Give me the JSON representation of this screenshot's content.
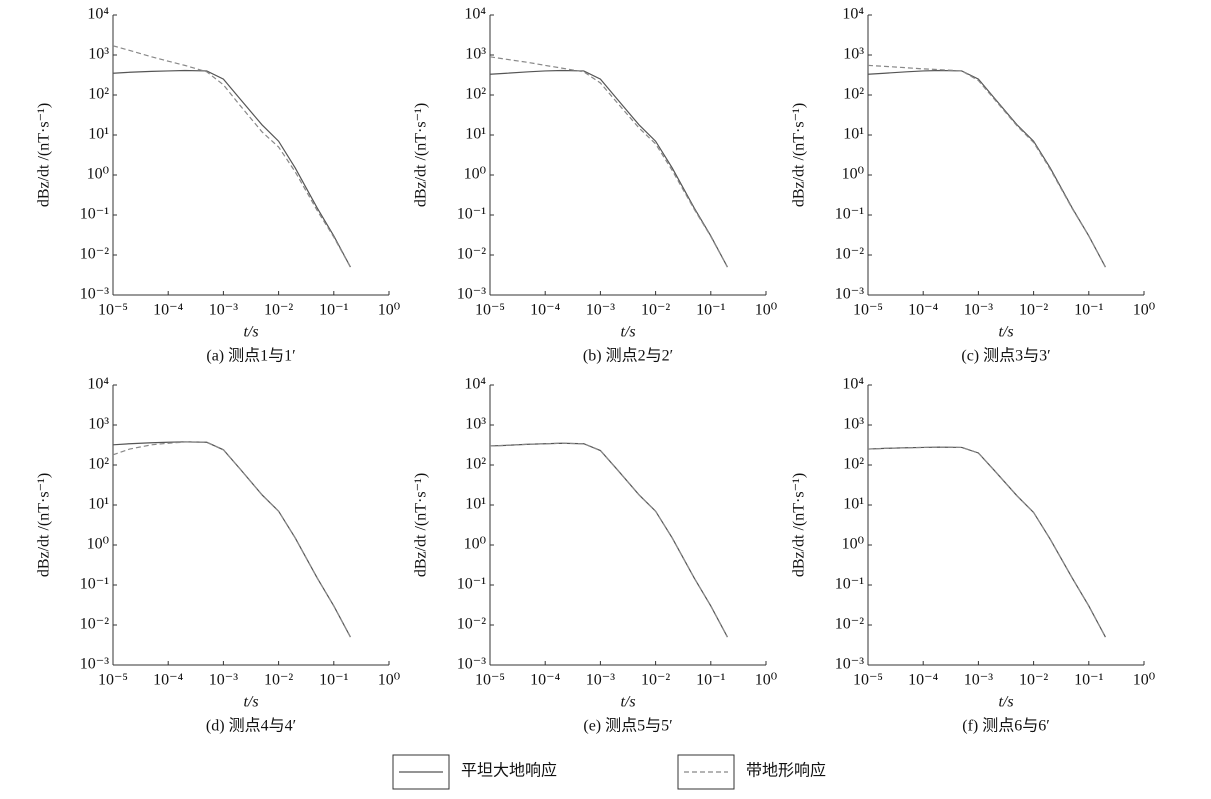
{
  "chart_data": [
    {
      "type": "line",
      "caption": "(a) 测点1与1′",
      "x_label": "t/s",
      "y_label": "dBz/dt /(nT·s⁻¹)",
      "xscale": "log",
      "yscale": "log",
      "x": [
        1e-05,
        2e-05,
        5e-05,
        0.0001,
        0.0002,
        0.0005,
        0.001,
        0.002,
        0.005,
        0.01,
        0.02,
        0.05,
        0.1,
        0.2
      ],
      "series": [
        {
          "style": "solid",
          "color": "#555555",
          "values": [
            350,
            370,
            390,
            400,
            410,
            400,
            250,
            80,
            18,
            7,
            1.5,
            0.15,
            0.03,
            0.005
          ]
        },
        {
          "style": "dashed",
          "color": "#888888",
          "values": [
            1700,
            1300,
            900,
            700,
            550,
            380,
            180,
            55,
            12,
            5,
            1.2,
            0.13,
            0.028,
            0.005
          ]
        }
      ],
      "xlim": [
        1e-05,
        1
      ],
      "ylim": [
        0.001,
        10000
      ],
      "xticks": [
        {
          "value": 1e-05,
          "label": "10⁻⁵"
        },
        {
          "value": 0.0001,
          "label": "10⁻⁴"
        },
        {
          "value": 0.001,
          "label": "10⁻³"
        },
        {
          "value": 0.01,
          "label": "10⁻²"
        },
        {
          "value": 0.1,
          "label": "10⁻¹"
        },
        {
          "value": 1,
          "label": "10⁰"
        }
      ],
      "yticks": [
        {
          "value": 0.001,
          "label": "10⁻³"
        },
        {
          "value": 0.01,
          "label": "10⁻²"
        },
        {
          "value": 0.1,
          "label": "10⁻¹"
        },
        {
          "value": 1,
          "label": "10⁰"
        },
        {
          "value": 10,
          "label": "10¹"
        },
        {
          "value": 100,
          "label": "10²"
        },
        {
          "value": 1000,
          "label": "10³"
        },
        {
          "value": 10000,
          "label": "10⁴"
        }
      ]
    },
    {
      "type": "line",
      "caption": "(b) 测点2与2′",
      "x_label": "t/s",
      "y_label": "dBz/dt /(nT·s⁻¹)",
      "xscale": "log",
      "yscale": "log",
      "x": [
        1e-05,
        2e-05,
        5e-05,
        0.0001,
        0.0002,
        0.0005,
        0.001,
        0.002,
        0.005,
        0.01,
        0.02,
        0.05,
        0.1,
        0.2
      ],
      "series": [
        {
          "style": "solid",
          "color": "#555555",
          "values": [
            330,
            350,
            380,
            400,
            410,
            400,
            250,
            80,
            18,
            7,
            1.5,
            0.15,
            0.03,
            0.005
          ]
        },
        {
          "style": "dashed",
          "color": "#888888",
          "values": [
            900,
            780,
            650,
            550,
            470,
            380,
            200,
            65,
            15,
            6,
            1.3,
            0.14,
            0.029,
            0.005
          ]
        }
      ],
      "xlim": [
        1e-05,
        1
      ],
      "ylim": [
        0.001,
        10000
      ],
      "xticks": [
        {
          "value": 1e-05,
          "label": "10⁻⁵"
        },
        {
          "value": 0.0001,
          "label": "10⁻⁴"
        },
        {
          "value": 0.001,
          "label": "10⁻³"
        },
        {
          "value": 0.01,
          "label": "10⁻²"
        },
        {
          "value": 0.1,
          "label": "10⁻¹"
        },
        {
          "value": 1,
          "label": "10⁰"
        }
      ],
      "yticks": [
        {
          "value": 0.001,
          "label": "10⁻³"
        },
        {
          "value": 0.01,
          "label": "10⁻²"
        },
        {
          "value": 0.1,
          "label": "10⁻¹"
        },
        {
          "value": 1,
          "label": "10⁰"
        },
        {
          "value": 10,
          "label": "10¹"
        },
        {
          "value": 100,
          "label": "10²"
        },
        {
          "value": 1000,
          "label": "10³"
        },
        {
          "value": 10000,
          "label": "10⁴"
        }
      ]
    },
    {
      "type": "line",
      "caption": "(c) 测点3与3′",
      "x_label": "t/s",
      "y_label": "dBz/dt /(nT·s⁻¹)",
      "xscale": "log",
      "yscale": "log",
      "x": [
        1e-05,
        2e-05,
        5e-05,
        0.0001,
        0.0002,
        0.0005,
        0.001,
        0.002,
        0.005,
        0.01,
        0.02,
        0.05,
        0.1,
        0.2
      ],
      "series": [
        {
          "style": "solid",
          "color": "#555555",
          "values": [
            330,
            350,
            380,
            400,
            410,
            400,
            250,
            80,
            18,
            7,
            1.5,
            0.15,
            0.03,
            0.005
          ]
        },
        {
          "style": "dashed",
          "color": "#888888",
          "values": [
            550,
            520,
            480,
            450,
            430,
            400,
            230,
            75,
            17,
            6.5,
            1.4,
            0.145,
            0.03,
            0.005
          ]
        }
      ],
      "xlim": [
        1e-05,
        1
      ],
      "ylim": [
        0.001,
        10000
      ],
      "xticks": [
        {
          "value": 1e-05,
          "label": "10⁻⁵"
        },
        {
          "value": 0.0001,
          "label": "10⁻⁴"
        },
        {
          "value": 0.001,
          "label": "10⁻³"
        },
        {
          "value": 0.01,
          "label": "10⁻²"
        },
        {
          "value": 0.1,
          "label": "10⁻¹"
        },
        {
          "value": 1,
          "label": "10⁰"
        }
      ],
      "yticks": [
        {
          "value": 0.001,
          "label": "10⁻³"
        },
        {
          "value": 0.01,
          "label": "10⁻²"
        },
        {
          "value": 0.1,
          "label": "10⁻¹"
        },
        {
          "value": 1,
          "label": "10⁰"
        },
        {
          "value": 10,
          "label": "10¹"
        },
        {
          "value": 100,
          "label": "10²"
        },
        {
          "value": 1000,
          "label": "10³"
        },
        {
          "value": 10000,
          "label": "10⁴"
        }
      ]
    },
    {
      "type": "line",
      "caption": "(d) 测点4与4′",
      "x_label": "t/s",
      "y_label": "dBz/dt /(nT·s⁻¹)",
      "xscale": "log",
      "yscale": "log",
      "x": [
        1e-05,
        2e-05,
        5e-05,
        0.0001,
        0.0002,
        0.0005,
        0.001,
        0.002,
        0.005,
        0.01,
        0.02,
        0.05,
        0.1,
        0.2
      ],
      "series": [
        {
          "style": "solid",
          "color": "#555555",
          "values": [
            320,
            340,
            360,
            370,
            380,
            370,
            240,
            80,
            18,
            7,
            1.5,
            0.15,
            0.03,
            0.005
          ]
        },
        {
          "style": "dashed",
          "color": "#888888",
          "values": [
            180,
            250,
            320,
            350,
            375,
            370,
            240,
            80,
            18,
            7,
            1.5,
            0.15,
            0.03,
            0.005
          ]
        }
      ],
      "xlim": [
        1e-05,
        1
      ],
      "ylim": [
        0.001,
        10000
      ],
      "xticks": [
        {
          "value": 1e-05,
          "label": "10⁻⁵"
        },
        {
          "value": 0.0001,
          "label": "10⁻⁴"
        },
        {
          "value": 0.001,
          "label": "10⁻³"
        },
        {
          "value": 0.01,
          "label": "10⁻²"
        },
        {
          "value": 0.1,
          "label": "10⁻¹"
        },
        {
          "value": 1,
          "label": "10⁰"
        }
      ],
      "yticks": [
        {
          "value": 0.001,
          "label": "10⁻³"
        },
        {
          "value": 0.01,
          "label": "10⁻²"
        },
        {
          "value": 0.1,
          "label": "10⁻¹"
        },
        {
          "value": 1,
          "label": "10⁰"
        },
        {
          "value": 10,
          "label": "10¹"
        },
        {
          "value": 100,
          "label": "10²"
        },
        {
          "value": 1000,
          "label": "10³"
        },
        {
          "value": 10000,
          "label": "10⁴"
        }
      ]
    },
    {
      "type": "line",
      "caption": "(e) 测点5与5′",
      "x_label": "t/s",
      "y_label": "dBz/dt /(nT·s⁻¹)",
      "xscale": "log",
      "yscale": "log",
      "x": [
        1e-05,
        2e-05,
        5e-05,
        0.0001,
        0.0002,
        0.0005,
        0.001,
        0.002,
        0.005,
        0.01,
        0.02,
        0.05,
        0.1,
        0.2
      ],
      "series": [
        {
          "style": "solid",
          "color": "#555555",
          "values": [
            300,
            310,
            330,
            340,
            350,
            340,
            230,
            78,
            18,
            7,
            1.5,
            0.15,
            0.03,
            0.005
          ]
        },
        {
          "style": "dashed",
          "color": "#888888",
          "values": [
            300,
            310,
            330,
            340,
            350,
            340,
            230,
            78,
            18,
            7,
            1.5,
            0.15,
            0.03,
            0.005
          ]
        }
      ],
      "xlim": [
        1e-05,
        1
      ],
      "ylim": [
        0.001,
        10000
      ],
      "xticks": [
        {
          "value": 1e-05,
          "label": "10⁻⁵"
        },
        {
          "value": 0.0001,
          "label": "10⁻⁴"
        },
        {
          "value": 0.001,
          "label": "10⁻³"
        },
        {
          "value": 0.01,
          "label": "10⁻²"
        },
        {
          "value": 0.1,
          "label": "10⁻¹"
        },
        {
          "value": 1,
          "label": "10⁰"
        }
      ],
      "yticks": [
        {
          "value": 0.001,
          "label": "10⁻³"
        },
        {
          "value": 0.01,
          "label": "10⁻²"
        },
        {
          "value": 0.1,
          "label": "10⁻¹"
        },
        {
          "value": 1,
          "label": "10⁰"
        },
        {
          "value": 10,
          "label": "10¹"
        },
        {
          "value": 100,
          "label": "10²"
        },
        {
          "value": 1000,
          "label": "10³"
        },
        {
          "value": 10000,
          "label": "10⁴"
        }
      ]
    },
    {
      "type": "line",
      "caption": "(f) 测点6与6′",
      "x_label": "t/s",
      "y_label": "dBz/dt /(nT·s⁻¹)",
      "xscale": "log",
      "yscale": "log",
      "x": [
        1e-05,
        2e-05,
        5e-05,
        0.0001,
        0.0002,
        0.0005,
        0.001,
        0.002,
        0.005,
        0.01,
        0.02,
        0.05,
        0.1,
        0.2
      ],
      "series": [
        {
          "style": "solid",
          "color": "#555555",
          "values": [
            250,
            260,
            270,
            275,
            280,
            275,
            200,
            70,
            17,
            6.5,
            1.4,
            0.15,
            0.03,
            0.005
          ]
        },
        {
          "style": "dashed",
          "color": "#888888",
          "values": [
            250,
            260,
            270,
            275,
            280,
            275,
            200,
            70,
            17,
            6.5,
            1.4,
            0.15,
            0.03,
            0.005
          ]
        }
      ],
      "xlim": [
        1e-05,
        1
      ],
      "ylim": [
        0.001,
        10000
      ],
      "xticks": [
        {
          "value": 1e-05,
          "label": "10⁻⁵"
        },
        {
          "value": 0.0001,
          "label": "10⁻⁴"
        },
        {
          "value": 0.001,
          "label": "10⁻³"
        },
        {
          "value": 0.01,
          "label": "10⁻²"
        },
        {
          "value": 0.1,
          "label": "10⁻¹"
        },
        {
          "value": 1,
          "label": "10⁰"
        }
      ],
      "yticks": [
        {
          "value": 0.001,
          "label": "10⁻³"
        },
        {
          "value": 0.01,
          "label": "10⁻²"
        },
        {
          "value": 0.1,
          "label": "10⁻¹"
        },
        {
          "value": 1,
          "label": "10⁰"
        },
        {
          "value": 10,
          "label": "10¹"
        },
        {
          "value": 100,
          "label": "10²"
        },
        {
          "value": 1000,
          "label": "10³"
        },
        {
          "value": 10000,
          "label": "10⁴"
        }
      ]
    }
  ],
  "legend": [
    {
      "name": "平坦大地响应",
      "style": "solid",
      "color": "#555555"
    },
    {
      "name": "带地形响应",
      "style": "dashed",
      "color": "#888888"
    }
  ]
}
